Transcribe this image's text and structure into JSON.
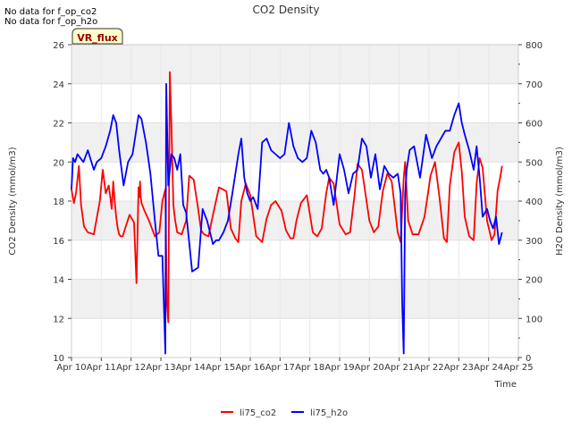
{
  "notes": [
    "No data for f_op_co2",
    "No data for f_op_h2o"
  ],
  "badge": "VR_flux",
  "colors": {
    "co2": "#ff0000",
    "h2o": "#0000ff",
    "band": "#f0f0f0",
    "badge_bg": "#ffffcc",
    "badge_text": "#990000"
  },
  "chart_data": {
    "type": "line",
    "title": "CO2 Density",
    "xlabel": "Time",
    "ylabel": "CO2 Density (mmol/m3)",
    "y2label": "H2O Density (mmol/m3)",
    "x_ticks": [
      "Apr 10",
      "Apr 11",
      "Apr 12",
      "Apr 13",
      "Apr 14",
      "Apr 15",
      "Apr 16",
      "Apr 17",
      "Apr 18",
      "Apr 19",
      "Apr 20",
      "Apr 21",
      "Apr 22",
      "Apr 23",
      "Apr 24",
      "Apr 25"
    ],
    "xlim": [
      0,
      15
    ],
    "ylim": [
      10,
      26
    ],
    "y_ticks": [
      10,
      12,
      14,
      16,
      18,
      20,
      22,
      24,
      26
    ],
    "y2lim": [
      0,
      800
    ],
    "y2_ticks": [
      0,
      100,
      200,
      300,
      400,
      500,
      600,
      700,
      800
    ],
    "legend": [
      "li75_co2",
      "li75_h2o"
    ],
    "series": [
      {
        "name": "li75_co2",
        "axis": "left",
        "x": [
          0.0,
          0.08,
          0.15,
          0.25,
          0.32,
          0.42,
          0.55,
          0.75,
          0.95,
          1.05,
          1.15,
          1.25,
          1.35,
          1.4,
          1.45,
          1.5,
          1.55,
          1.6,
          1.65,
          1.72,
          1.8,
          1.95,
          2.1,
          2.18,
          2.25,
          2.28,
          2.3,
          2.32,
          2.35,
          2.45,
          2.6,
          2.8,
          2.95,
          3.05,
          3.15,
          3.2,
          3.25,
          3.3,
          3.35,
          3.42,
          3.48,
          3.55,
          3.7,
          3.85,
          3.95,
          4.1,
          4.25,
          4.35,
          4.45,
          4.6,
          4.75,
          4.95,
          5.2,
          5.35,
          5.5,
          5.6,
          5.7,
          5.85,
          6.0,
          6.2,
          6.4,
          6.55,
          6.7,
          6.85,
          7.05,
          7.2,
          7.35,
          7.45,
          7.55,
          7.7,
          7.9,
          8.1,
          8.25,
          8.4,
          8.55,
          8.65,
          8.8,
          9.0,
          9.2,
          9.35,
          9.5,
          9.6,
          9.75,
          10.0,
          10.15,
          10.3,
          10.45,
          10.6,
          10.75,
          10.95,
          11.05,
          11.15,
          11.2,
          11.3,
          11.45,
          11.65,
          11.85,
          12.05,
          12.2,
          12.35,
          12.5,
          12.6,
          12.7,
          12.85,
          13.0,
          13.1,
          13.2,
          13.35,
          13.5,
          13.6,
          13.7,
          13.8,
          13.95,
          14.1,
          14.2,
          14.3,
          14.4,
          14.45
        ],
        "values": [
          18.6,
          17.9,
          18.4,
          19.8,
          17.8,
          16.7,
          16.4,
          16.3,
          18.0,
          19.6,
          18.4,
          18.8,
          17.6,
          19.0,
          18.0,
          17.2,
          16.6,
          16.3,
          16.2,
          16.2,
          16.6,
          17.3,
          16.9,
          13.8,
          18.7,
          18.2,
          19.0,
          18.3,
          17.9,
          17.5,
          17.0,
          16.2,
          16.4,
          18.0,
          18.6,
          12.8,
          11.8,
          24.6,
          22.0,
          17.8,
          17.0,
          16.4,
          16.3,
          17.0,
          19.3,
          19.1,
          17.6,
          16.5,
          16.3,
          16.2,
          17.3,
          18.7,
          18.5,
          16.6,
          16.1,
          15.9,
          18.0,
          18.9,
          18.3,
          16.2,
          15.9,
          17.1,
          17.8,
          18.0,
          17.5,
          16.5,
          16.1,
          16.1,
          17.0,
          17.9,
          18.3,
          16.4,
          16.2,
          16.6,
          18.4,
          19.2,
          18.9,
          16.8,
          16.3,
          16.4,
          18.3,
          19.9,
          19.6,
          17.0,
          16.4,
          16.7,
          18.5,
          19.4,
          19.0,
          16.4,
          15.9,
          19.2,
          20.0,
          17.0,
          16.3,
          16.3,
          17.2,
          19.3,
          20.0,
          18.2,
          16.1,
          15.9,
          18.8,
          20.5,
          21.0,
          19.5,
          17.2,
          16.2,
          16.0,
          18.9,
          20.2,
          19.7,
          17.0,
          16.0,
          16.3,
          18.5,
          19.3,
          19.8
        ]
      },
      {
        "name": "li75_h2o",
        "axis": "right",
        "x": [
          0.0,
          0.05,
          0.12,
          0.2,
          0.3,
          0.4,
          0.55,
          0.75,
          0.85,
          1.0,
          1.15,
          1.3,
          1.4,
          1.5,
          1.6,
          1.75,
          1.9,
          2.05,
          2.15,
          2.25,
          2.35,
          2.5,
          2.65,
          2.8,
          2.92,
          3.05,
          3.15,
          3.18,
          3.2,
          3.25,
          3.35,
          3.45,
          3.55,
          3.65,
          3.75,
          3.85,
          4.05,
          4.25,
          4.4,
          4.55,
          4.65,
          4.75,
          4.85,
          4.95,
          5.1,
          5.25,
          5.4,
          5.6,
          5.7,
          5.8,
          5.9,
          6.0,
          6.1,
          6.25,
          6.4,
          6.55,
          6.7,
          6.85,
          7.0,
          7.15,
          7.3,
          7.45,
          7.6,
          7.75,
          7.9,
          8.05,
          8.2,
          8.35,
          8.45,
          8.55,
          8.65,
          8.8,
          9.0,
          9.15,
          9.3,
          9.45,
          9.6,
          9.75,
          9.9,
          10.05,
          10.2,
          10.35,
          10.5,
          10.65,
          10.8,
          10.95,
          11.05,
          11.1,
          11.15,
          11.2,
          11.25,
          11.35,
          11.5,
          11.7,
          11.9,
          12.1,
          12.25,
          12.4,
          12.55,
          12.7,
          12.85,
          13.0,
          13.1,
          13.2,
          13.35,
          13.5,
          13.6,
          13.7,
          13.8,
          13.95,
          14.05,
          14.15,
          14.25,
          14.35,
          14.45
        ],
        "values": [
          430,
          510,
          500,
          520,
          510,
          500,
          530,
          480,
          500,
          510,
          540,
          580,
          620,
          600,
          530,
          440,
          500,
          520,
          570,
          620,
          610,
          550,
          470,
          350,
          260,
          260,
          10,
          700,
          620,
          440,
          520,
          510,
          480,
          520,
          390,
          370,
          220,
          230,
          380,
          350,
          320,
          290,
          300,
          300,
          320,
          350,
          420,
          520,
          560,
          460,
          420,
          400,
          410,
          380,
          550,
          560,
          530,
          520,
          510,
          520,
          600,
          540,
          510,
          500,
          510,
          580,
          550,
          480,
          470,
          480,
          460,
          390,
          520,
          480,
          420,
          470,
          480,
          560,
          540,
          460,
          520,
          430,
          490,
          470,
          460,
          470,
          420,
          140,
          10,
          420,
          480,
          530,
          540,
          460,
          570,
          510,
          540,
          560,
          580,
          580,
          620,
          650,
          600,
          570,
          530,
          480,
          540,
          460,
          360,
          380,
          350,
          330,
          360,
          290,
          320
        ]
      }
    ]
  }
}
